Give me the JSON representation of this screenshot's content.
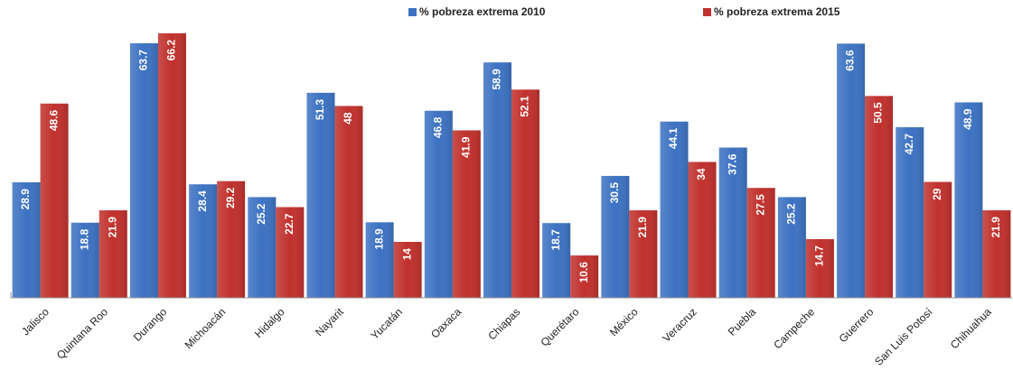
{
  "chart_data": {
    "type": "bar",
    "categories": [
      "Jalisco",
      "Quintana Roo",
      "Durango",
      "Michoacán",
      "Hidalgo",
      "Nayarit",
      "Yucatán",
      "Oaxaca",
      "Chiapas",
      "Querétaro",
      "México",
      "Veracruz",
      "Puebla",
      "Campeche",
      "Guerrero",
      "San Luis Potosí",
      "Chihuahua"
    ],
    "series": [
      {
        "name": "% pobreza extrema 2010",
        "color": "#3d72c2",
        "values": [
          28.9,
          18.8,
          63.7,
          28.4,
          25.2,
          51.3,
          18.9,
          46.8,
          58.9,
          18.7,
          30.5,
          44.1,
          37.6,
          25.2,
          63.6,
          42.7,
          48.9
        ]
      },
      {
        "name": "% pobreza extrema 2015",
        "color": "#c0312d",
        "values": [
          48.6,
          21.9,
          66.2,
          29.2,
          22.7,
          48.0,
          14.0,
          41.9,
          52.1,
          10.6,
          21.9,
          34.0,
          27.5,
          14.7,
          50.5,
          29.0,
          21.9
        ]
      }
    ],
    "ylim": [
      0,
      70
    ],
    "legend": "top"
  }
}
